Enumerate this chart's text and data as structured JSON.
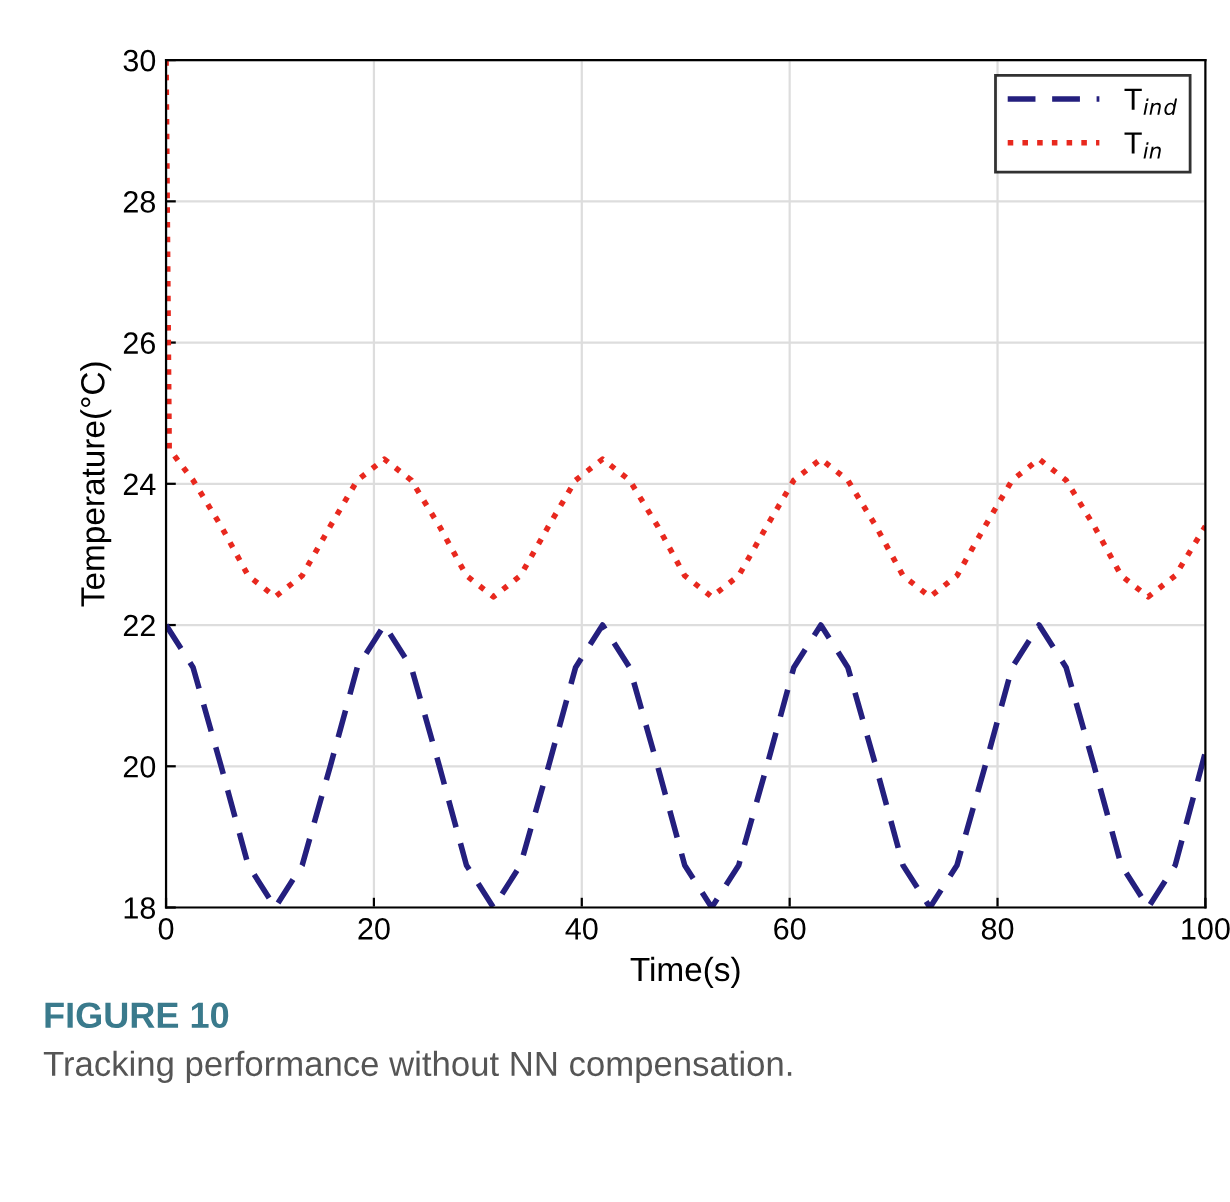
{
  "chart_data": {
    "type": "line",
    "xlabel": "Time(s)",
    "ylabel": "Temperature(°C)",
    "xlim": [
      0,
      100
    ],
    "xticks": [
      0,
      20,
      40,
      60,
      80,
      100
    ],
    "ylim": [
      18,
      30
    ],
    "yticks": [
      18,
      20,
      22,
      24,
      26,
      28,
      30
    ],
    "grid": true,
    "legend": "top right",
    "marker": "none",
    "series": [
      {
        "name": "T$_{in}$$_{d}$",
        "color": "#241f7e",
        "line_style": "dashed",
        "x": [
          0,
          2.6,
          5.3,
          7.9,
          10.5,
          13.1,
          15.8,
          18.4,
          21,
          23.6,
          26.3,
          28.9,
          31.5,
          34.1,
          36.8,
          39.4,
          42,
          44.6,
          47.3,
          49.9,
          52.5,
          55.1,
          57.8,
          60.4,
          63,
          65.6,
          68.3,
          70.9,
          73.5,
          76.1,
          78.8,
          81.4,
          84,
          86.6,
          89.3,
          91.9,
          94.5,
          97.1,
          100
        ],
        "values": [
          22,
          21.4,
          20,
          18.6,
          18,
          18.6,
          20,
          21.4,
          22,
          21.4,
          20,
          18.6,
          18,
          18.6,
          20,
          21.4,
          22,
          21.4,
          20,
          18.6,
          18,
          18.6,
          20,
          21.4,
          22,
          21.4,
          20,
          18.6,
          18,
          18.6,
          20,
          21.4,
          22,
          21.4,
          20,
          18.6,
          18,
          18.6,
          20.2
        ]
      },
      {
        "name": "T$_{in}$",
        "color": "#e8281e",
        "line_style": "dotted",
        "x": [
          0,
          0.3,
          1.3,
          2.6,
          5.3,
          7.9,
          10.5,
          13.1,
          15.8,
          18.4,
          21,
          23.6,
          26.3,
          28.9,
          31.5,
          34.1,
          36.8,
          39.4,
          42,
          44.6,
          47.3,
          49.9,
          52.5,
          55.1,
          57.8,
          60.4,
          63,
          65.6,
          68.3,
          70.9,
          73.5,
          76.1,
          78.8,
          81.4,
          84,
          86.6,
          89.3,
          91.9,
          94.5,
          97.1,
          100
        ],
        "values": [
          30,
          24.5,
          24.3,
          24.05,
          23.4,
          22.7,
          22.4,
          22.7,
          23.4,
          24.05,
          24.35,
          24.05,
          23.4,
          22.7,
          22.4,
          22.7,
          23.4,
          24.05,
          24.35,
          24.05,
          23.4,
          22.7,
          22.4,
          22.7,
          23.4,
          24.05,
          24.35,
          24.05,
          23.4,
          22.7,
          22.4,
          22.7,
          23.4,
          24.05,
          24.35,
          24.05,
          23.4,
          22.7,
          22.4,
          22.7,
          23.4
        ]
      }
    ],
    "annotations": [
      "FIGURE 10",
      "Tracking performance without NN compensation."
    ]
  }
}
